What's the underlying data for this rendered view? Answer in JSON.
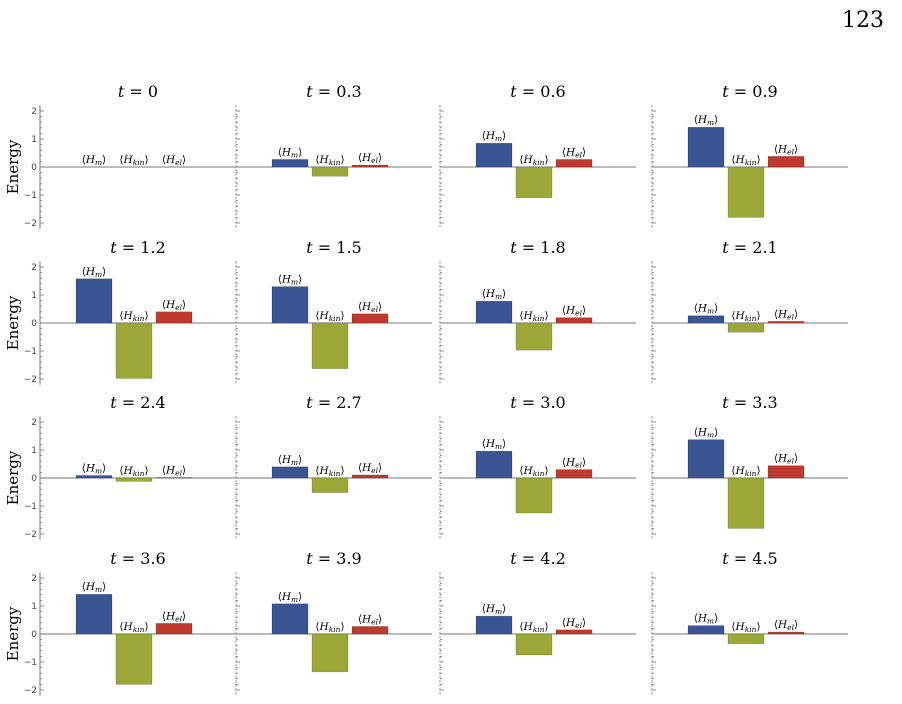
{
  "page": {
    "number": "123"
  },
  "chart_data": {
    "type": "bar",
    "ylabel": "Energy",
    "ylim": [
      -2.2,
      2.2
    ],
    "yticks": [
      -2,
      -1,
      0,
      1,
      2
    ],
    "grid": false,
    "categories": [
      "⟨H_m⟩",
      "⟨H_kin⟩",
      "⟨H_el⟩"
    ],
    "colors": {
      "H_m": "#3a5594",
      "H_kin": "#9aa838",
      "H_el": "#c0392f"
    },
    "panels": [
      {
        "title": "t = 0",
        "values": {
          "H_m": 0.0,
          "H_kin": 0.0,
          "H_el": 0.0
        }
      },
      {
        "title": "t = 0.3",
        "values": {
          "H_m": 0.27,
          "H_kin": -0.33,
          "H_el": 0.07
        }
      },
      {
        "title": "t = 0.6",
        "values": {
          "H_m": 0.85,
          "H_kin": -1.1,
          "H_el": 0.27
        }
      },
      {
        "title": "t = 0.9",
        "values": {
          "H_m": 1.42,
          "H_kin": -1.8,
          "H_el": 0.38
        }
      },
      {
        "title": "t = 1.2",
        "values": {
          "H_m": 1.58,
          "H_kin": -1.98,
          "H_el": 0.4
        }
      },
      {
        "title": "t = 1.5",
        "values": {
          "H_m": 1.3,
          "H_kin": -1.63,
          "H_el": 0.33
        }
      },
      {
        "title": "t = 1.8",
        "values": {
          "H_m": 0.78,
          "H_kin": -0.97,
          "H_el": 0.19
        }
      },
      {
        "title": "t = 2.1",
        "values": {
          "H_m": 0.26,
          "H_kin": -0.33,
          "H_el": 0.06
        }
      },
      {
        "title": "t = 2.4",
        "values": {
          "H_m": 0.09,
          "H_kin": -0.12,
          "H_el": 0.02
        }
      },
      {
        "title": "t = 2.7",
        "values": {
          "H_m": 0.4,
          "H_kin": -0.52,
          "H_el": 0.11
        }
      },
      {
        "title": "t = 3.0",
        "values": {
          "H_m": 0.96,
          "H_kin": -1.25,
          "H_el": 0.3
        }
      },
      {
        "title": "t = 3.3",
        "values": {
          "H_m": 1.37,
          "H_kin": -1.8,
          "H_el": 0.44
        }
      },
      {
        "title": "t = 3.6",
        "values": {
          "H_m": 1.42,
          "H_kin": -1.8,
          "H_el": 0.38
        }
      },
      {
        "title": "t = 3.9",
        "values": {
          "H_m": 1.08,
          "H_kin": -1.35,
          "H_el": 0.27
        }
      },
      {
        "title": "t = 4.2",
        "values": {
          "H_m": 0.64,
          "H_kin": -0.75,
          "H_el": 0.15
        }
      },
      {
        "title": "t = 4.5",
        "values": {
          "H_m": 0.3,
          "H_kin": -0.35,
          "H_el": 0.07
        }
      }
    ]
  }
}
